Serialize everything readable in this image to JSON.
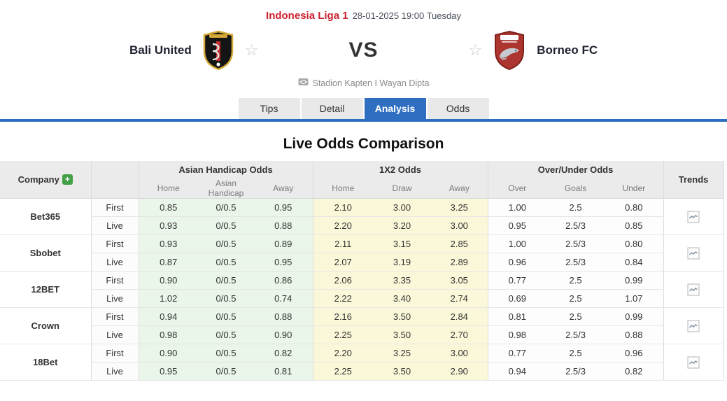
{
  "header": {
    "league": "Indonesia Liga 1",
    "datetime": "28-01-2025 19:00 Tuesday",
    "home_team": "Bali United",
    "away_team": "Borneo FC",
    "vs": "VS",
    "stadium": "Stadion Kapten I Wayan Dipta"
  },
  "icons": {
    "favorite": "☆",
    "add": "+"
  },
  "tabs": [
    {
      "label": "Tips",
      "active": false
    },
    {
      "label": "Detail",
      "active": false
    },
    {
      "label": "Analysis",
      "active": true
    },
    {
      "label": "Odds",
      "active": false
    }
  ],
  "section_title": "Live Odds Comparison",
  "table": {
    "company_header": "Company",
    "trends_header": "Trends",
    "group_headers": [
      "Asian Handicap Odds",
      "1X2 Odds",
      "Over/Under Odds"
    ],
    "sub_ah": [
      "Home",
      "Asian Handicap",
      "Away"
    ],
    "sub_x12": [
      "Home",
      "Draw",
      "Away"
    ],
    "sub_ou": [
      "Over",
      "Goals",
      "Under"
    ],
    "row_types": [
      "First",
      "Live"
    ],
    "companies": [
      {
        "name": "Bet365",
        "first": {
          "ah": [
            "0.85",
            "0/0.5",
            "0.95"
          ],
          "x12": [
            "2.10",
            "3.00",
            "3.25"
          ],
          "ou": [
            "1.00",
            "2.5",
            "0.80"
          ]
        },
        "live": {
          "ah": [
            "0.93",
            "0/0.5",
            "0.88"
          ],
          "x12": [
            "2.20",
            "3.20",
            "3.00"
          ],
          "ou": [
            "0.95",
            "2.5/3",
            "0.85"
          ]
        }
      },
      {
        "name": "Sbobet",
        "first": {
          "ah": [
            "0.93",
            "0/0.5",
            "0.89"
          ],
          "x12": [
            "2.11",
            "3.15",
            "2.85"
          ],
          "ou": [
            "1.00",
            "2.5/3",
            "0.80"
          ]
        },
        "live": {
          "ah": [
            "0.87",
            "0/0.5",
            "0.95"
          ],
          "x12": [
            "2.07",
            "3.19",
            "2.89"
          ],
          "ou": [
            "0.96",
            "2.5/3",
            "0.84"
          ]
        }
      },
      {
        "name": "12BET",
        "first": {
          "ah": [
            "0.90",
            "0/0.5",
            "0.86"
          ],
          "x12": [
            "2.06",
            "3.35",
            "3.05"
          ],
          "ou": [
            "0.77",
            "2.5",
            "0.99"
          ]
        },
        "live": {
          "ah": [
            "1.02",
            "0/0.5",
            "0.74"
          ],
          "x12": [
            "2.22",
            "3.40",
            "2.74"
          ],
          "ou": [
            "0.69",
            "2.5",
            "1.07"
          ]
        }
      },
      {
        "name": "Crown",
        "first": {
          "ah": [
            "0.94",
            "0/0.5",
            "0.88"
          ],
          "x12": [
            "2.16",
            "3.50",
            "2.84"
          ],
          "ou": [
            "0.81",
            "2.5",
            "0.99"
          ]
        },
        "live": {
          "ah": [
            "0.98",
            "0/0.5",
            "0.90"
          ],
          "x12": [
            "2.25",
            "3.50",
            "2.70"
          ],
          "ou": [
            "0.98",
            "2.5/3",
            "0.88"
          ]
        }
      },
      {
        "name": "18Bet",
        "first": {
          "ah": [
            "0.90",
            "0/0.5",
            "0.82"
          ],
          "x12": [
            "2.20",
            "3.25",
            "3.00"
          ],
          "ou": [
            "0.77",
            "2.5",
            "0.96"
          ]
        },
        "live": {
          "ah": [
            "0.95",
            "0/0.5",
            "0.81"
          ],
          "x12": [
            "2.25",
            "3.50",
            "2.90"
          ],
          "ou": [
            "0.94",
            "2.5/3",
            "0.82"
          ]
        }
      }
    ]
  },
  "colors": {
    "league_red": "#cb2130",
    "tab_blue": "#2e6fc1",
    "ah_green_bg": "#e9f6e9",
    "x12_yellow_bg": "#fbf8d9",
    "header_gray_bg": "#ebebeb",
    "plus_green": "#43a047"
  }
}
